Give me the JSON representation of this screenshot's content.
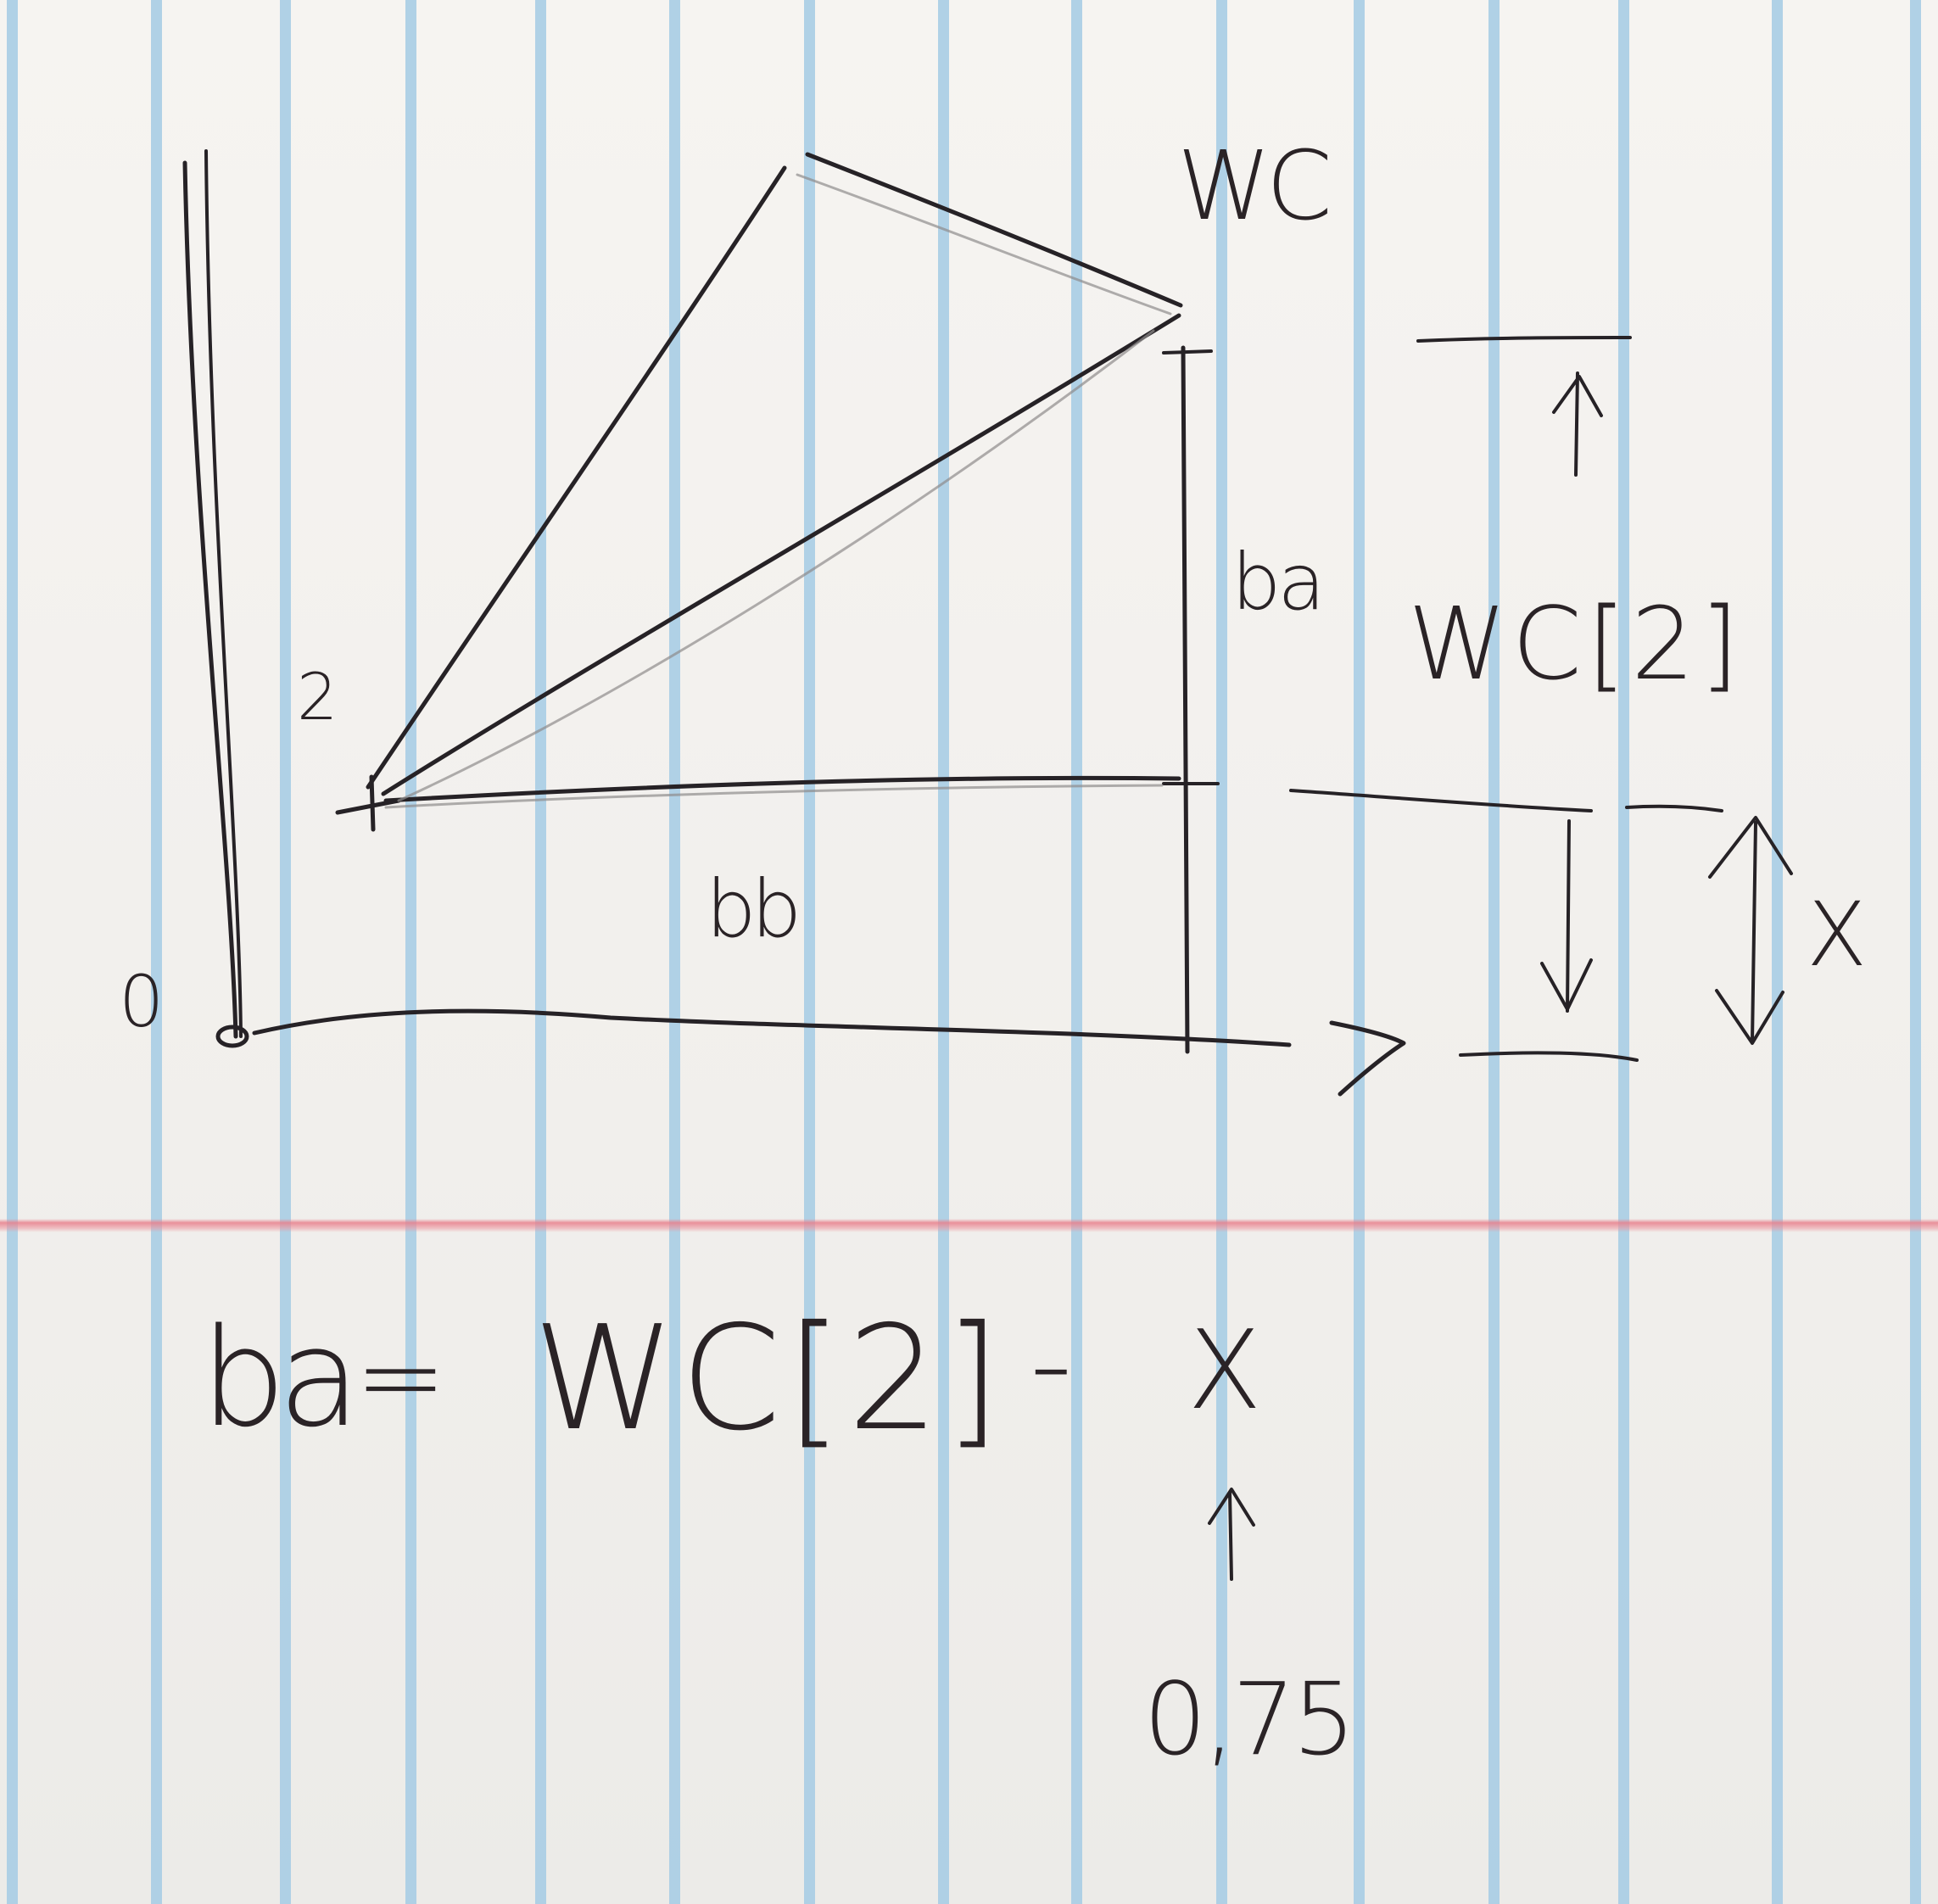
{
  "paper": {
    "rule_color": "#a9cde4",
    "margin_color": "#e8808c",
    "ink_color": "#262226"
  },
  "diagram": {
    "label_origin": "0",
    "label_joint": "2",
    "label_wc": "WC",
    "label_ba": "ba",
    "label_bb": "bb",
    "label_height": "WC[2]",
    "label_x": "X"
  },
  "equation": {
    "lhs": "ba",
    "eq": "=",
    "rhs_term": "WC[2]",
    "minus": "-",
    "var": "X",
    "note_value": "0,75"
  }
}
